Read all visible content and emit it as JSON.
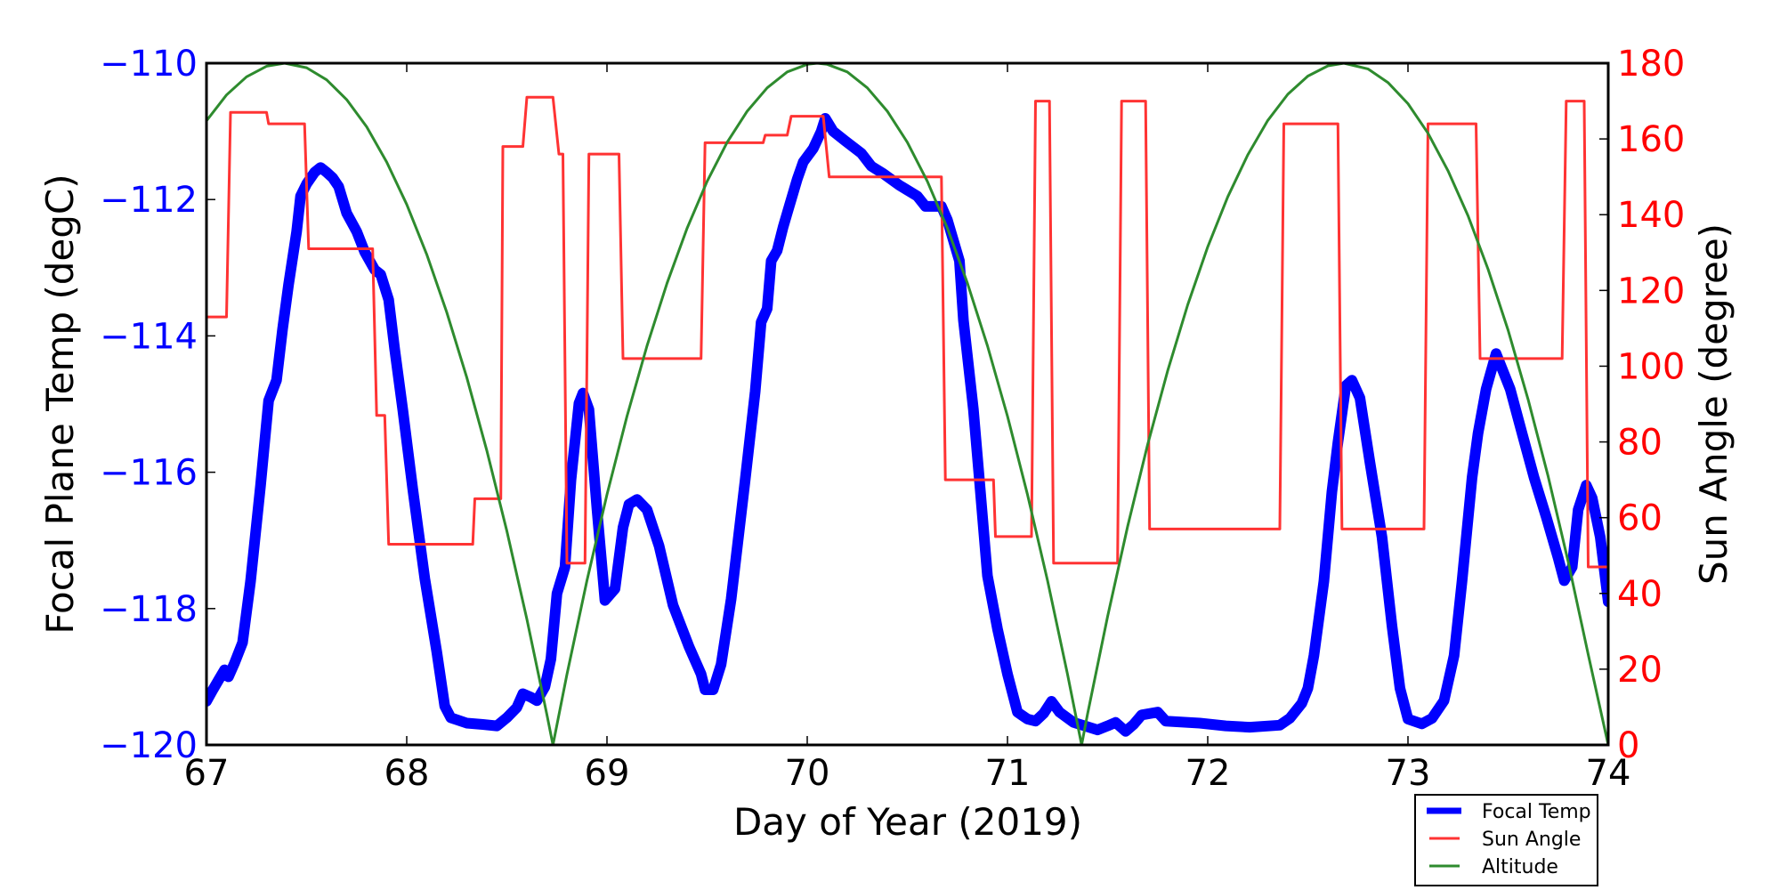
{
  "chart_data": {
    "type": "line",
    "title": "",
    "xlabel": "Day of Year (2019)",
    "ylabel": "Focal Plane Temp (degC)",
    "y2label": "Sun Angle (degree)",
    "xlim": [
      67,
      74
    ],
    "ylim": [
      -120,
      -110
    ],
    "y2lim": [
      0,
      180
    ],
    "grid": false,
    "legend_position": "bottom-right (below plot)",
    "x_ticks": [
      "67",
      "68",
      "69",
      "70",
      "71",
      "72",
      "73",
      "74"
    ],
    "x_tick_values": [
      67,
      68,
      69,
      70,
      71,
      72,
      73,
      74
    ],
    "y_ticks": [
      "−110",
      "−112",
      "−114",
      "−116",
      "−118",
      "−120"
    ],
    "y_tick_values": [
      -110,
      -112,
      -114,
      -116,
      -118,
      -120
    ],
    "y2_ticks": [
      "180",
      "160",
      "140",
      "120",
      "100",
      "80",
      "60",
      "40",
      "20",
      "0"
    ],
    "y2_tick_values": [
      180,
      160,
      140,
      120,
      100,
      80,
      60,
      40,
      20,
      0
    ],
    "colors": {
      "left_axis": "#0000ff",
      "right_axis": "#ff0000",
      "focal_temp": "#0000ff",
      "sun_angle": "#ff3333",
      "altitude": "#2e8b2e"
    },
    "series": [
      {
        "name": "Focal Temp",
        "axis": "left",
        "points": [
          [
            67.0,
            -119.36
          ],
          [
            67.03,
            -119.2
          ],
          [
            67.06,
            -119.05
          ],
          [
            67.09,
            -118.9
          ],
          [
            67.11,
            -119.0
          ],
          [
            67.14,
            -118.8
          ],
          [
            67.18,
            -118.5
          ],
          [
            67.22,
            -117.6
          ],
          [
            67.27,
            -116.2
          ],
          [
            67.31,
            -114.95
          ],
          [
            67.35,
            -114.65
          ],
          [
            67.38,
            -113.9
          ],
          [
            67.41,
            -113.25
          ],
          [
            67.45,
            -112.47
          ],
          [
            67.47,
            -111.95
          ],
          [
            67.5,
            -111.77
          ],
          [
            67.54,
            -111.6
          ],
          [
            67.57,
            -111.53
          ],
          [
            67.6,
            -111.6
          ],
          [
            67.63,
            -111.68
          ],
          [
            67.66,
            -111.81
          ],
          [
            67.7,
            -112.2
          ],
          [
            67.75,
            -112.47
          ],
          [
            67.79,
            -112.77
          ],
          [
            67.84,
            -113.03
          ],
          [
            67.87,
            -113.1
          ],
          [
            67.91,
            -113.47
          ],
          [
            67.94,
            -114.2
          ],
          [
            67.98,
            -115.08
          ],
          [
            68.03,
            -116.25
          ],
          [
            68.09,
            -117.56
          ],
          [
            68.15,
            -118.64
          ],
          [
            68.19,
            -119.43
          ],
          [
            68.22,
            -119.6
          ],
          [
            68.3,
            -119.68
          ],
          [
            68.38,
            -119.7
          ],
          [
            68.45,
            -119.72
          ],
          [
            68.5,
            -119.6
          ],
          [
            68.55,
            -119.45
          ],
          [
            68.58,
            -119.25
          ],
          [
            68.62,
            -119.3
          ],
          [
            68.65,
            -119.35
          ],
          [
            68.69,
            -119.15
          ],
          [
            68.72,
            -118.74
          ],
          [
            68.75,
            -117.78
          ],
          [
            68.79,
            -117.39
          ],
          [
            68.82,
            -116.12
          ],
          [
            68.86,
            -114.99
          ],
          [
            68.88,
            -114.84
          ],
          [
            68.91,
            -115.08
          ],
          [
            68.95,
            -116.55
          ],
          [
            68.99,
            -117.88
          ],
          [
            69.04,
            -117.71
          ],
          [
            69.08,
            -116.81
          ],
          [
            69.11,
            -116.47
          ],
          [
            69.15,
            -116.4
          ],
          [
            69.2,
            -116.55
          ],
          [
            69.26,
            -117.08
          ],
          [
            69.33,
            -117.95
          ],
          [
            69.41,
            -118.56
          ],
          [
            69.47,
            -118.96
          ],
          [
            69.49,
            -119.19
          ],
          [
            69.53,
            -119.19
          ],
          [
            69.57,
            -118.82
          ],
          [
            69.62,
            -117.86
          ],
          [
            69.69,
            -116.12
          ],
          [
            69.74,
            -114.82
          ],
          [
            69.77,
            -113.8
          ],
          [
            69.8,
            -113.6
          ],
          [
            69.82,
            -112.9
          ],
          [
            69.85,
            -112.75
          ],
          [
            69.88,
            -112.4
          ],
          [
            69.91,
            -112.1
          ],
          [
            69.95,
            -111.7
          ],
          [
            69.98,
            -111.45
          ],
          [
            70.03,
            -111.25
          ],
          [
            70.07,
            -111.0
          ],
          [
            70.09,
            -110.81
          ],
          [
            70.13,
            -111.0
          ],
          [
            70.19,
            -111.14
          ],
          [
            70.27,
            -111.32
          ],
          [
            70.32,
            -111.51
          ],
          [
            70.38,
            -111.62
          ],
          [
            70.46,
            -111.79
          ],
          [
            70.55,
            -111.95
          ],
          [
            70.59,
            -112.1
          ],
          [
            70.67,
            -112.1
          ],
          [
            70.7,
            -112.3
          ],
          [
            70.76,
            -112.9
          ],
          [
            70.78,
            -113.77
          ],
          [
            70.83,
            -115.08
          ],
          [
            70.86,
            -116.12
          ],
          [
            70.9,
            -117.52
          ],
          [
            70.95,
            -118.3
          ],
          [
            71.0,
            -118.96
          ],
          [
            71.05,
            -119.52
          ],
          [
            71.1,
            -119.62
          ],
          [
            71.14,
            -119.65
          ],
          [
            71.18,
            -119.54
          ],
          [
            71.22,
            -119.36
          ],
          [
            71.26,
            -119.52
          ],
          [
            71.33,
            -119.67
          ],
          [
            71.45,
            -119.78
          ],
          [
            71.5,
            -119.72
          ],
          [
            71.54,
            -119.67
          ],
          [
            71.59,
            -119.8
          ],
          [
            71.63,
            -119.7
          ],
          [
            71.67,
            -119.56
          ],
          [
            71.75,
            -119.52
          ],
          [
            71.79,
            -119.65
          ],
          [
            71.96,
            -119.68
          ],
          [
            72.09,
            -119.72
          ],
          [
            72.21,
            -119.74
          ],
          [
            72.36,
            -119.71
          ],
          [
            72.41,
            -119.61
          ],
          [
            72.47,
            -119.39
          ],
          [
            72.5,
            -119.17
          ],
          [
            72.53,
            -118.69
          ],
          [
            72.58,
            -117.6
          ],
          [
            72.62,
            -116.29
          ],
          [
            72.65,
            -115.56
          ],
          [
            72.69,
            -114.73
          ],
          [
            72.72,
            -114.65
          ],
          [
            72.76,
            -114.91
          ],
          [
            72.81,
            -115.86
          ],
          [
            72.87,
            -116.95
          ],
          [
            72.92,
            -118.25
          ],
          [
            72.96,
            -119.17
          ],
          [
            73.0,
            -119.62
          ],
          [
            73.07,
            -119.69
          ],
          [
            73.12,
            -119.61
          ],
          [
            73.18,
            -119.35
          ],
          [
            73.23,
            -118.69
          ],
          [
            73.27,
            -117.6
          ],
          [
            73.32,
            -116.08
          ],
          [
            73.35,
            -115.43
          ],
          [
            73.39,
            -114.78
          ],
          [
            73.44,
            -114.26
          ],
          [
            73.51,
            -114.78
          ],
          [
            73.57,
            -115.43
          ],
          [
            73.63,
            -116.08
          ],
          [
            73.69,
            -116.65
          ],
          [
            73.75,
            -117.26
          ],
          [
            73.78,
            -117.59
          ],
          [
            73.82,
            -117.39
          ],
          [
            73.85,
            -116.55
          ],
          [
            73.89,
            -116.19
          ],
          [
            73.92,
            -116.38
          ],
          [
            73.96,
            -116.95
          ],
          [
            74.0,
            -117.9
          ]
        ]
      },
      {
        "name": "Sun Angle",
        "axis": "right",
        "points": [
          [
            67.0,
            113
          ],
          [
            67.1,
            113
          ],
          [
            67.12,
            167
          ],
          [
            67.3,
            167
          ],
          [
            67.31,
            164
          ],
          [
            67.49,
            164
          ],
          [
            67.51,
            131
          ],
          [
            67.83,
            131
          ],
          [
            67.85,
            87
          ],
          [
            67.89,
            87
          ],
          [
            67.91,
            53
          ],
          [
            68.33,
            53
          ],
          [
            68.34,
            65
          ],
          [
            68.47,
            65
          ],
          [
            68.48,
            158
          ],
          [
            68.58,
            158
          ],
          [
            68.6,
            171
          ],
          [
            68.73,
            171
          ],
          [
            68.76,
            156
          ],
          [
            68.78,
            156
          ],
          [
            68.8,
            48
          ],
          [
            68.89,
            48
          ],
          [
            68.91,
            156
          ],
          [
            69.06,
            156
          ],
          [
            69.08,
            102
          ],
          [
            69.47,
            102
          ],
          [
            69.49,
            159
          ],
          [
            69.78,
            159
          ],
          [
            69.79,
            161
          ],
          [
            69.9,
            161
          ],
          [
            69.92,
            166
          ],
          [
            70.08,
            166
          ],
          [
            70.11,
            150
          ],
          [
            70.67,
            150
          ],
          [
            70.69,
            70
          ],
          [
            70.93,
            70
          ],
          [
            70.94,
            55
          ],
          [
            71.12,
            55
          ],
          [
            71.14,
            170
          ],
          [
            71.21,
            170
          ],
          [
            71.23,
            48
          ],
          [
            71.55,
            48
          ],
          [
            71.57,
            170
          ],
          [
            71.69,
            170
          ],
          [
            71.71,
            57
          ],
          [
            72.36,
            57
          ],
          [
            72.38,
            164
          ],
          [
            72.65,
            164
          ],
          [
            72.67,
            57
          ],
          [
            73.08,
            57
          ],
          [
            73.1,
            164
          ],
          [
            73.34,
            164
          ],
          [
            73.36,
            102
          ],
          [
            73.77,
            102
          ],
          [
            73.79,
            170
          ],
          [
            73.88,
            170
          ],
          [
            73.9,
            47
          ],
          [
            74.0,
            47
          ]
        ]
      },
      {
        "name": "Altitude",
        "axis": "right",
        "points": [
          [
            67.0,
            164.8
          ],
          [
            67.1,
            171.6
          ],
          [
            67.2,
            176.4
          ],
          [
            67.3,
            179.2
          ],
          [
            67.39,
            180
          ],
          [
            67.5,
            178.8
          ],
          [
            67.6,
            175.6
          ],
          [
            67.7,
            170.4
          ],
          [
            67.8,
            163.2
          ],
          [
            67.9,
            153.9
          ],
          [
            68.0,
            142.7
          ],
          [
            68.1,
            129.5
          ],
          [
            68.2,
            114.2
          ],
          [
            68.3,
            97.0
          ],
          [
            68.4,
            77.7
          ],
          [
            68.5,
            56.5
          ],
          [
            68.6,
            33.2
          ],
          [
            68.7,
            8.0
          ],
          [
            68.73,
            0
          ],
          [
            68.8,
            18.6
          ],
          [
            68.9,
            43.4
          ],
          [
            69.0,
            66.1
          ],
          [
            69.1,
            86.8
          ],
          [
            69.2,
            105.4
          ],
          [
            69.3,
            121.9
          ],
          [
            69.4,
            136.4
          ],
          [
            69.5,
            148.8
          ],
          [
            69.6,
            159.1
          ],
          [
            69.7,
            167.3
          ],
          [
            69.8,
            173.5
          ],
          [
            69.9,
            177.7
          ],
          [
            70.0,
            179.7
          ],
          [
            70.05,
            180
          ],
          [
            70.1,
            179.7
          ],
          [
            70.2,
            177.7
          ],
          [
            70.3,
            173.5
          ],
          [
            70.4,
            167.3
          ],
          [
            70.5,
            159.1
          ],
          [
            70.6,
            148.8
          ],
          [
            70.7,
            136.4
          ],
          [
            70.8,
            121.9
          ],
          [
            70.9,
            105.4
          ],
          [
            71.0,
            86.8
          ],
          [
            71.1,
            66.1
          ],
          [
            71.2,
            43.4
          ],
          [
            71.3,
            18.6
          ],
          [
            71.37,
            0
          ],
          [
            71.4,
            8.2
          ],
          [
            71.5,
            33.9
          ],
          [
            71.6,
            57.7
          ],
          [
            71.7,
            79.3
          ],
          [
            71.8,
            98.8
          ],
          [
            71.9,
            116.2
          ],
          [
            72.0,
            131.5
          ],
          [
            72.1,
            144.7
          ],
          [
            72.2,
            155.8
          ],
          [
            72.3,
            164.9
          ],
          [
            72.4,
            171.8
          ],
          [
            72.5,
            176.6
          ],
          [
            72.6,
            179.3
          ],
          [
            72.68,
            180
          ],
          [
            72.8,
            178.5
          ],
          [
            72.9,
            174.9
          ],
          [
            73.0,
            169.3
          ],
          [
            73.1,
            161.5
          ],
          [
            73.2,
            151.6
          ],
          [
            73.3,
            139.7
          ],
          [
            73.4,
            125.6
          ],
          [
            73.5,
            109.5
          ],
          [
            73.6,
            91.2
          ],
          [
            73.7,
            70.9
          ],
          [
            73.8,
            48.4
          ],
          [
            73.9,
            23.9
          ],
          [
            74.0,
            0
          ]
        ]
      }
    ],
    "legend": [
      {
        "label": "Focal Temp",
        "series": 0
      },
      {
        "label": "Sun Angle",
        "series": 1
      },
      {
        "label": "Altitude",
        "series": 2
      }
    ]
  }
}
